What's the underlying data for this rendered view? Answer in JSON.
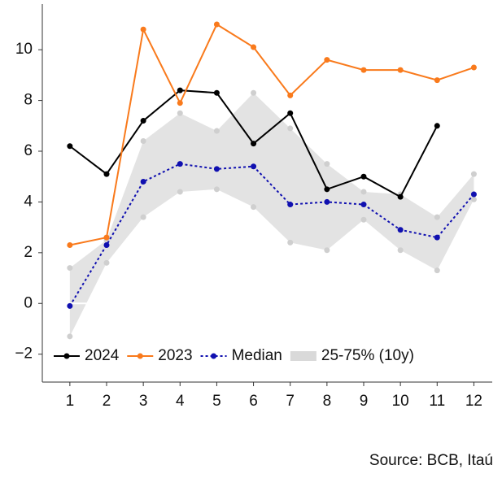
{
  "chart_data": {
    "type": "line",
    "x": [
      1,
      2,
      3,
      4,
      5,
      6,
      7,
      8,
      9,
      10,
      11,
      12
    ],
    "xlim": [
      0.25,
      12.5
    ],
    "xticks": [
      1,
      2,
      3,
      4,
      5,
      6,
      7,
      8,
      9,
      10,
      11,
      12
    ],
    "ylim": [
      -3.1,
      11.8
    ],
    "yticks": [
      {
        "value": -2,
        "label": "−2"
      },
      0,
      2,
      4,
      6,
      8,
      10
    ],
    "series": [
      {
        "name": "2024",
        "color": "#000000",
        "style": "solid",
        "values": [
          6.2,
          5.1,
          7.2,
          8.4,
          8.3,
          6.3,
          7.5,
          4.5,
          5.0,
          4.2,
          7.0,
          null
        ]
      },
      {
        "name": "2023",
        "color": "#f97a1c",
        "style": "solid",
        "values": [
          2.3,
          2.6,
          10.8,
          7.9,
          11.0,
          10.1,
          8.2,
          9.6,
          9.2,
          9.2,
          8.8,
          9.3
        ]
      },
      {
        "name": "Median",
        "color": "#1010b0",
        "style": "dotted",
        "values": [
          -0.1,
          2.3,
          4.8,
          5.5,
          5.3,
          5.4,
          3.9,
          4.0,
          3.9,
          2.9,
          2.6,
          4.3
        ]
      }
    ],
    "band": {
      "name": "25-75% (10y)",
      "color": "#d9d9d9",
      "upper": [
        1.4,
        2.5,
        6.4,
        7.5,
        6.8,
        8.3,
        6.9,
        5.5,
        4.4,
        4.3,
        3.4,
        5.1
      ],
      "lower": [
        -1.3,
        1.6,
        3.4,
        4.4,
        4.5,
        3.8,
        2.4,
        2.1,
        3.3,
        2.1,
        1.3,
        4.1
      ]
    },
    "legend": "lower-left",
    "source": "Source: BCB, Itaú"
  }
}
